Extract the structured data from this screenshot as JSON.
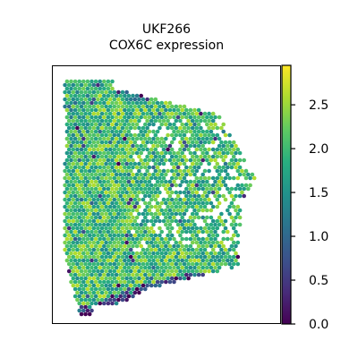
{
  "chart_data": {
    "type": "scatter",
    "title": "UKF266",
    "subtitle": "COX6C expression",
    "xlabel": "",
    "ylabel": "",
    "axes_ticks": false,
    "grid": false,
    "marker": "hexagonal spots",
    "colormap": "viridis",
    "colorbar": {
      "placement": "right",
      "min": 0.0,
      "max": 2.95,
      "ticks": [
        0.0,
        0.5,
        1.0,
        1.5,
        2.0,
        2.5
      ],
      "tick_labels": [
        "0.0",
        "0.5",
        "1.0",
        "1.5",
        "2.0",
        "2.5"
      ]
    },
    "value_distribution": {
      "typical_range": [
        1.3,
        2.6
      ],
      "low_value_regions": [
        "bottom edge of tissue",
        "top edge of tissue",
        "right edge of tissue"
      ]
    }
  }
}
